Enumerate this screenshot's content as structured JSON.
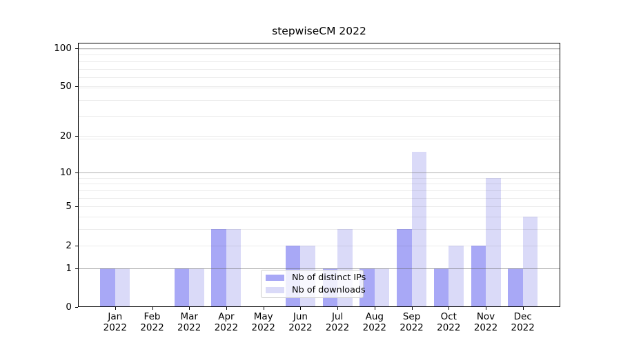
{
  "title": "stepwiseCM 2022",
  "chart_data": {
    "type": "bar",
    "title": "stepwiseCM 2022",
    "categories": [
      "Jan 2022",
      "Feb 2022",
      "Mar 2022",
      "Apr 2022",
      "May 2022",
      "Jun 2022",
      "Jul 2022",
      "Aug 2022",
      "Sep 2022",
      "Oct 2022",
      "Nov 2022",
      "Dec 2022"
    ],
    "series": [
      {
        "name": "Nb of distinct IPs",
        "color": "#a8a8f6",
        "values": [
          1,
          0,
          1,
          3,
          0,
          2,
          1,
          1,
          3,
          1,
          2,
          1
        ]
      },
      {
        "name": "Nb of downloads",
        "color": "#dadaf8",
        "values": [
          1,
          0,
          1,
          3,
          0,
          2,
          3,
          1,
          15,
          2,
          9,
          4
        ]
      }
    ],
    "yscale": "log10(1+y)",
    "yticks": [
      0,
      1,
      2,
      5,
      10,
      20,
      50,
      100
    ],
    "ylim": [
      0,
      110
    ],
    "grid": "horizontal",
    "grid_major_values": [
      1,
      10,
      100
    ],
    "grid_minor_values": [
      1,
      2,
      3,
      4,
      5,
      6,
      7,
      8,
      9,
      19,
      20,
      29,
      39,
      49,
      50,
      59,
      69,
      79,
      89,
      99
    ],
    "legend_position": "lower center"
  },
  "colors": {
    "background": "#ffffff",
    "spine": "#000000",
    "grid_major": "rgba(110,110,110,0.55)",
    "grid_minor": "rgba(0,0,0,0.08)",
    "bar_distinct_ips": "#a8a8f6",
    "bar_downloads": "#dadaf8",
    "legend_border": "#cccccc"
  }
}
